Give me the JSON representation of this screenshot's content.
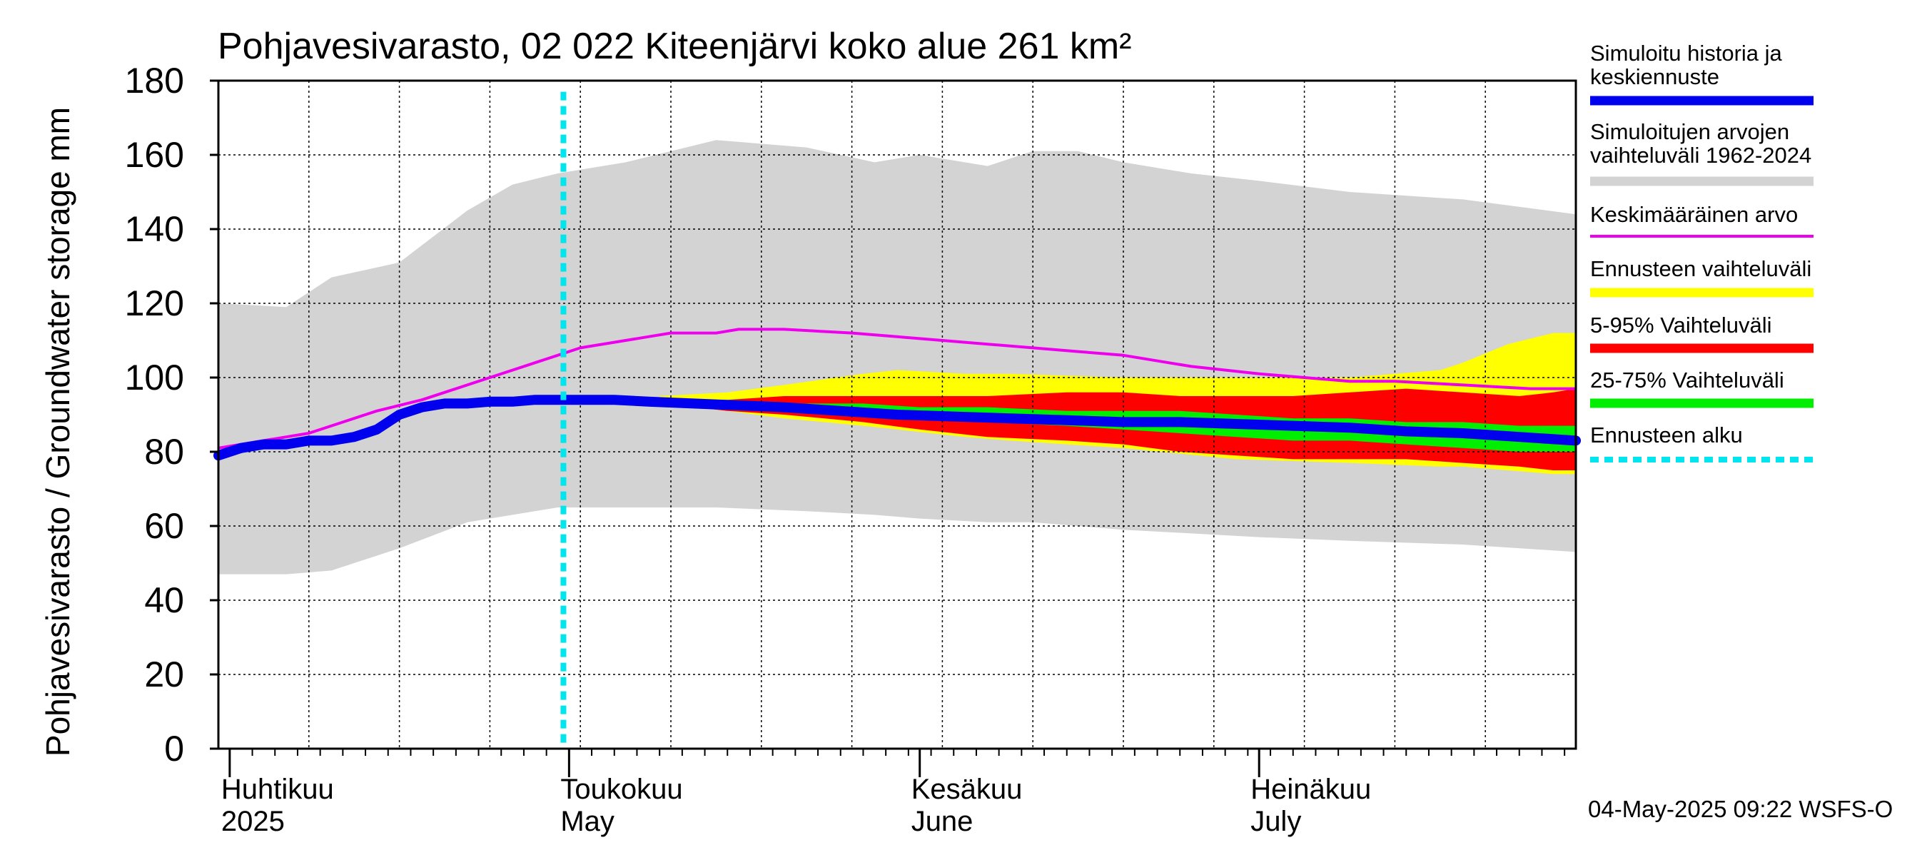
{
  "chart_data": {
    "type": "area",
    "title": "Pohjavesivarasto, 02 022 Kiteenjärvi koko alue 261 km²",
    "ylabel": "Pohjavesivarasto / Groundwater storage   mm",
    "ylim": [
      0,
      180
    ],
    "yticks": [
      0,
      20,
      40,
      60,
      80,
      100,
      120,
      140,
      160,
      180
    ],
    "xlim": [
      0,
      120
    ],
    "month_ticks": [
      {
        "day": 1,
        "fi": "Huhtikuu",
        "en": "2025"
      },
      {
        "day": 31,
        "fi": "Toukokuu",
        "en": "May"
      },
      {
        "day": 62,
        "fi": "Kesäkuu",
        "en": "June"
      },
      {
        "day": 92,
        "fi": "Heinäkuu",
        "en": "July"
      }
    ],
    "forecast_start_day": 30.5,
    "timestamp": "04-May-2025 09:22 WSFS-O",
    "legend": [
      {
        "label": "Simuloitu historia ja keskiennuste",
        "lines": [
          "Simuloitu historia ja",
          "keskiennuste"
        ],
        "color": "#0000ee",
        "style": "thick"
      },
      {
        "label": "Simuloitujen arvojen vaihteluväli 1962-2024",
        "lines": [
          "Simuloitujen arvojen",
          "vaihteluväli 1962-2024"
        ],
        "color": "#d3d3d3",
        "style": "band"
      },
      {
        "label": "Keskimääräinen arvo",
        "lines": [
          "Keskimääräinen arvo"
        ],
        "color": "#ee00ee",
        "style": "line"
      },
      {
        "label": "Ennusteen vaihteluväli",
        "lines": [
          "Ennusteen vaihteluväli"
        ],
        "color": "#ffff00",
        "style": "band"
      },
      {
        "label": "5-95% Vaihteluväli",
        "lines": [
          "5-95% Vaihteluväli"
        ],
        "color": "#ff0000",
        "style": "band"
      },
      {
        "label": "25-75% Vaihteluväli",
        "lines": [
          "25-75% Vaihteluväli"
        ],
        "color": "#00ee00",
        "style": "band"
      },
      {
        "label": "Ennusteen alku",
        "lines": [
          "Ennusteen alku"
        ],
        "color": "#00e5ee",
        "style": "dashed"
      }
    ],
    "series": [
      {
        "name": "Simuloitujen arvojen vaihteluväli 1962-2024",
        "x": [
          0,
          6,
          10,
          16,
          22,
          26,
          30,
          36,
          44,
          52,
          58,
          62,
          68,
          72,
          76,
          80,
          86,
          92,
          100,
          110,
          120
        ],
        "upper": [
          120,
          119,
          127,
          131,
          145,
          152,
          155,
          158,
          164,
          162,
          158,
          160,
          157,
          161,
          161,
          158,
          155,
          153,
          150,
          148,
          144
        ],
        "lower": [
          47,
          47,
          48,
          54,
          61,
          63,
          65,
          65,
          65,
          64,
          63,
          62,
          61,
          61,
          60,
          59,
          58,
          57,
          56,
          55,
          53
        ]
      },
      {
        "name": "Keskimääräinen arvo",
        "x": [
          0,
          4,
          6,
          8,
          10,
          14,
          18,
          20,
          24,
          28,
          30,
          32,
          36,
          38,
          40,
          44,
          46,
          50,
          56,
          60,
          64,
          68,
          72,
          76,
          80,
          86,
          92,
          96,
          100,
          104,
          110,
          116,
          120
        ],
        "values": [
          81,
          83,
          84,
          85,
          87,
          91,
          94,
          96,
          100,
          104,
          106,
          108,
          110,
          111,
          112,
          112,
          113,
          113,
          112,
          111,
          110,
          109,
          108,
          107,
          106,
          103,
          101,
          100,
          99,
          99,
          98,
          97,
          97
        ]
      },
      {
        "name": "Ennusteen vaihteluväli",
        "x": [
          39,
          45,
          50,
          57,
          60,
          66,
          70,
          80,
          90,
          100,
          108,
          110,
          114,
          118,
          120
        ],
        "upper": [
          95,
          96,
          98,
          101,
          102,
          101,
          101,
          100,
          100,
          100,
          102,
          104,
          109,
          112,
          112
        ],
        "lower": [
          93,
          91,
          89,
          87,
          86,
          84,
          83,
          81,
          78,
          77,
          76,
          76,
          75,
          74,
          74
        ]
      },
      {
        "name": "5-95% Vaihteluväli",
        "x": [
          39,
          45,
          50,
          57,
          62,
          68,
          75,
          80,
          85,
          90,
          95,
          100,
          105,
          110,
          115,
          118,
          120
        ],
        "upper": [
          94,
          94,
          95,
          95,
          95,
          95,
          96,
          96,
          95,
          95,
          95,
          96,
          97,
          96,
          95,
          96,
          97
        ],
        "lower": [
          93,
          91,
          90,
          88,
          86,
          84,
          83,
          82,
          80,
          79,
          78,
          78,
          78,
          77,
          76,
          75,
          75
        ]
      },
      {
        "name": "25-75% Vaihteluväli",
        "x": [
          39,
          45,
          50,
          57,
          62,
          68,
          75,
          80,
          85,
          90,
          95,
          100,
          105,
          110,
          115,
          120
        ],
        "upper": [
          94,
          94,
          93,
          93,
          92,
          92,
          91,
          91,
          91,
          90,
          89,
          89,
          88,
          88,
          87,
          87
        ],
        "lower": [
          93,
          92,
          91,
          90,
          89,
          88,
          87,
          86,
          85,
          84,
          83,
          83,
          82,
          81,
          80,
          80
        ]
      },
      {
        "name": "Simuloitu historia ja keskiennuste",
        "x": [
          0,
          2,
          4,
          6,
          8,
          10,
          12,
          14,
          16,
          18,
          20,
          22,
          24,
          26,
          28,
          30,
          32,
          35,
          38,
          42,
          46,
          50,
          55,
          60,
          65,
          70,
          75,
          80,
          85,
          90,
          95,
          100,
          105,
          110,
          115,
          120
        ],
        "values": [
          79,
          81,
          82,
          82,
          83,
          83,
          84,
          86,
          90,
          92,
          93,
          93,
          93.5,
          93.5,
          94,
          94,
          94,
          94,
          93.5,
          93,
          92.5,
          92,
          91,
          90,
          89.5,
          89,
          88.5,
          88,
          88,
          87.5,
          87,
          86.5,
          85.5,
          85,
          84,
          83
        ]
      }
    ]
  }
}
